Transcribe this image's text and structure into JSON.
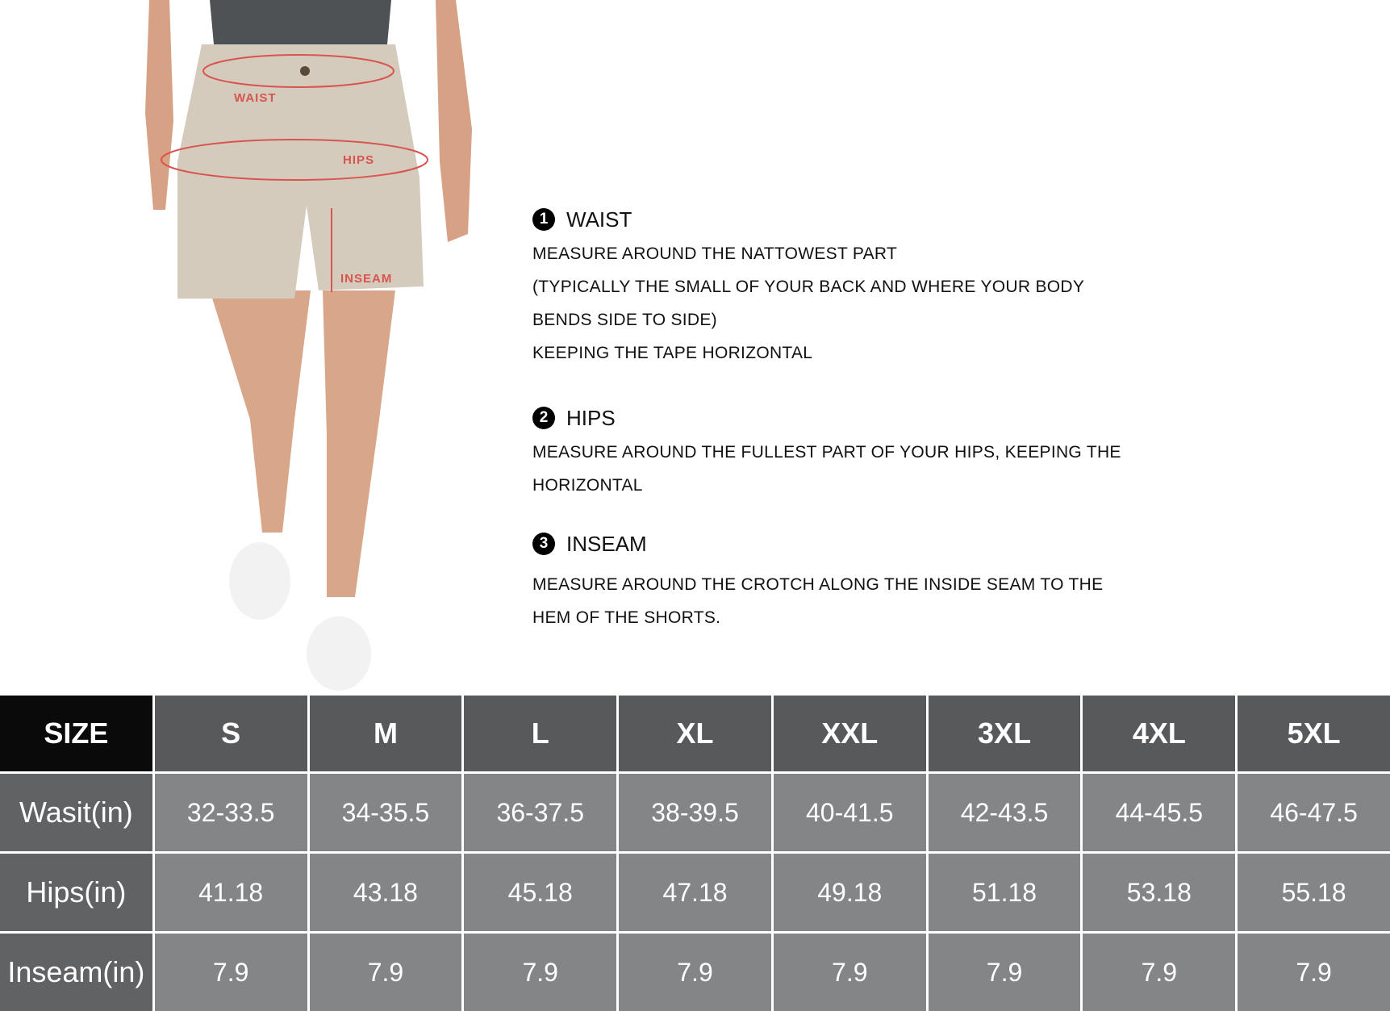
{
  "figure": {
    "labels": {
      "waist": "WAIST",
      "hips": "HIPS",
      "inseam": "INSEAM"
    },
    "line_color": "#d9534f"
  },
  "guide": {
    "sections": [
      {
        "number": "1",
        "title": "WAIST",
        "lines": [
          "MEASURE AROUND THE NATTOWEST PART",
          "(TYPICALLY THE SMALL OF YOUR BACK AND WHERE YOUR BODY",
          "BENDS SIDE TO SIDE)",
          "KEEPING THE TAPE HORIZONTAL"
        ]
      },
      {
        "number": "2",
        "title": "HIPS",
        "lines": [
          "MEASURE AROUND THE FULLEST PART OF YOUR HIPS, KEEPING THE",
          "HORIZONTAL"
        ]
      },
      {
        "number": "3",
        "title": "INSEAM",
        "lines": [
          "MEASURE AROUND THE CROTCH ALONG THE INSIDE SEAM TO THE",
          "HEM OF THE SHORTS."
        ]
      }
    ]
  },
  "table": {
    "corner": "SIZE",
    "sizes": [
      "S",
      "M",
      "L",
      "XL",
      "XXL",
      "3XL",
      "4XL",
      "5XL"
    ],
    "rows": [
      {
        "label": "Wasit(in)",
        "values": [
          "32-33.5",
          "34-35.5",
          "36-37.5",
          "38-39.5",
          "40-41.5",
          "42-43.5",
          "44-45.5",
          "46-47.5"
        ]
      },
      {
        "label": "Hips(in)",
        "values": [
          "41.18",
          "43.18",
          "45.18",
          "47.18",
          "49.18",
          "51.18",
          "53.18",
          "55.18"
        ]
      },
      {
        "label": "Inseam(in)",
        "values": [
          "7.9",
          "7.9",
          "7.9",
          "7.9",
          "7.9",
          "7.9",
          "7.9",
          "7.9"
        ]
      }
    ]
  }
}
